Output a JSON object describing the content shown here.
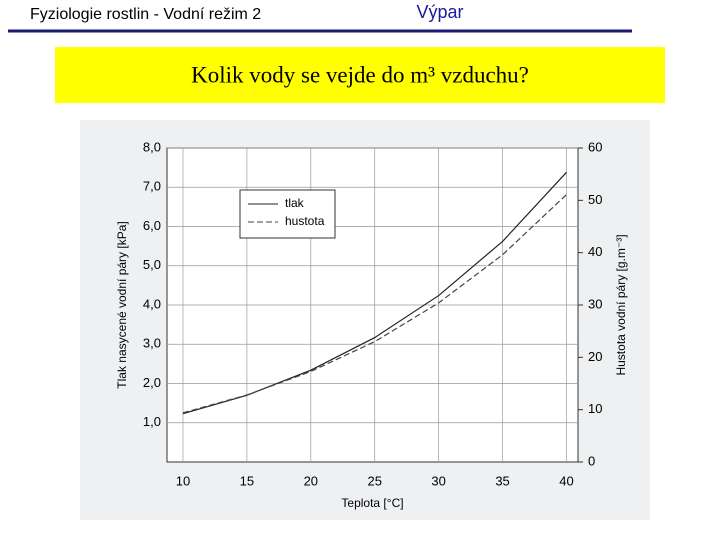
{
  "header": {
    "left": "Fyziologie rostlin  - Vodní režim 2",
    "right": "Výpar"
  },
  "banner": "Kolik vody se vejde do m³ vzduchu?",
  "chart_data": {
    "type": "line",
    "x_label": "Teplota [°C]",
    "y_label": "Tlak nasycené vodní páry [kPa]",
    "y2_label": "Hustota vodní páry [g.m⁻³]",
    "x": [
      10,
      15,
      20,
      25,
      30,
      35,
      40
    ],
    "series": [
      {
        "name": "tlak",
        "color": "#222222",
        "style": "solid",
        "values": [
          1.23,
          1.7,
          2.34,
          3.17,
          4.24,
          5.62,
          7.38
        ]
      },
      {
        "name": "hustota",
        "color": "#444444",
        "style": "dashed",
        "axis": "y2",
        "values": [
          9.4,
          12.8,
          17.3,
          23.0,
          30.4,
          39.6,
          51.1
        ]
      }
    ],
    "xlim": [
      8.75,
      40.9
    ],
    "xticks": [
      10,
      15,
      20,
      25,
      30,
      35,
      40
    ],
    "ylim": [
      0,
      8
    ],
    "yticks": [
      {
        "value": 1,
        "label": "1,0"
      },
      {
        "value": 2,
        "label": "2,0"
      },
      {
        "value": 3,
        "label": "3,0"
      },
      {
        "value": 4,
        "label": "4,0"
      },
      {
        "value": 5,
        "label": "5,0"
      },
      {
        "value": 6,
        "label": "6,0"
      },
      {
        "value": 7,
        "label": "7,0"
      },
      {
        "value": 8,
        "label": "8,0"
      }
    ],
    "y2lim": [
      0,
      60
    ],
    "y2ticks": [
      0,
      10,
      20,
      30,
      40,
      50,
      60
    ],
    "grid": true,
    "legend": "upper left"
  }
}
